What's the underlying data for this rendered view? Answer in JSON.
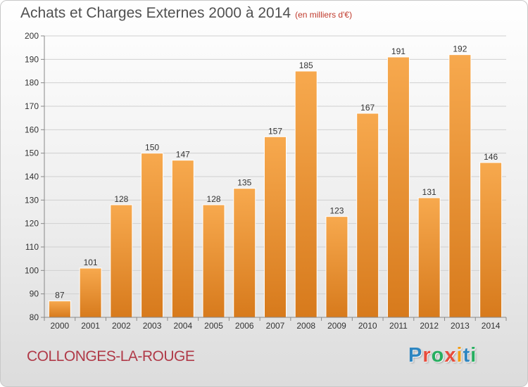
{
  "header": {
    "title": "Achats et Charges Externes 2000 à 2014",
    "unit_note": "(en milliers d'€)"
  },
  "footer": {
    "commune": "COLLONGES-LA-ROUGE",
    "logo_text": "Proxiti",
    "logo_colors": [
      "#2e86c1",
      "#e74c3c",
      "#27ae60",
      "#e74c3c",
      "#f39c12",
      "#2e86c1",
      "#27ae60"
    ]
  },
  "colors": {
    "bar_light": "#f7a94e",
    "bar_dark": "#d77a1c",
    "grid": "#d0d0d0",
    "axis": "#888888"
  },
  "chart_data": {
    "type": "bar",
    "title": "Achats et Charges Externes 2000 à 2014",
    "subtitle": "(en milliers d'€)",
    "categories": [
      "2000",
      "2001",
      "2002",
      "2003",
      "2004",
      "2005",
      "2006",
      "2007",
      "2008",
      "2009",
      "2010",
      "2011",
      "2012",
      "2013",
      "2014"
    ],
    "values": [
      87,
      101,
      128,
      150,
      147,
      128,
      135,
      157,
      185,
      123,
      167,
      191,
      131,
      192,
      146
    ],
    "ylim": [
      80,
      200
    ],
    "yticks": [
      80,
      90,
      100,
      110,
      120,
      130,
      140,
      150,
      160,
      170,
      180,
      190,
      200
    ],
    "grid": true,
    "xlabel": "",
    "ylabel": ""
  }
}
